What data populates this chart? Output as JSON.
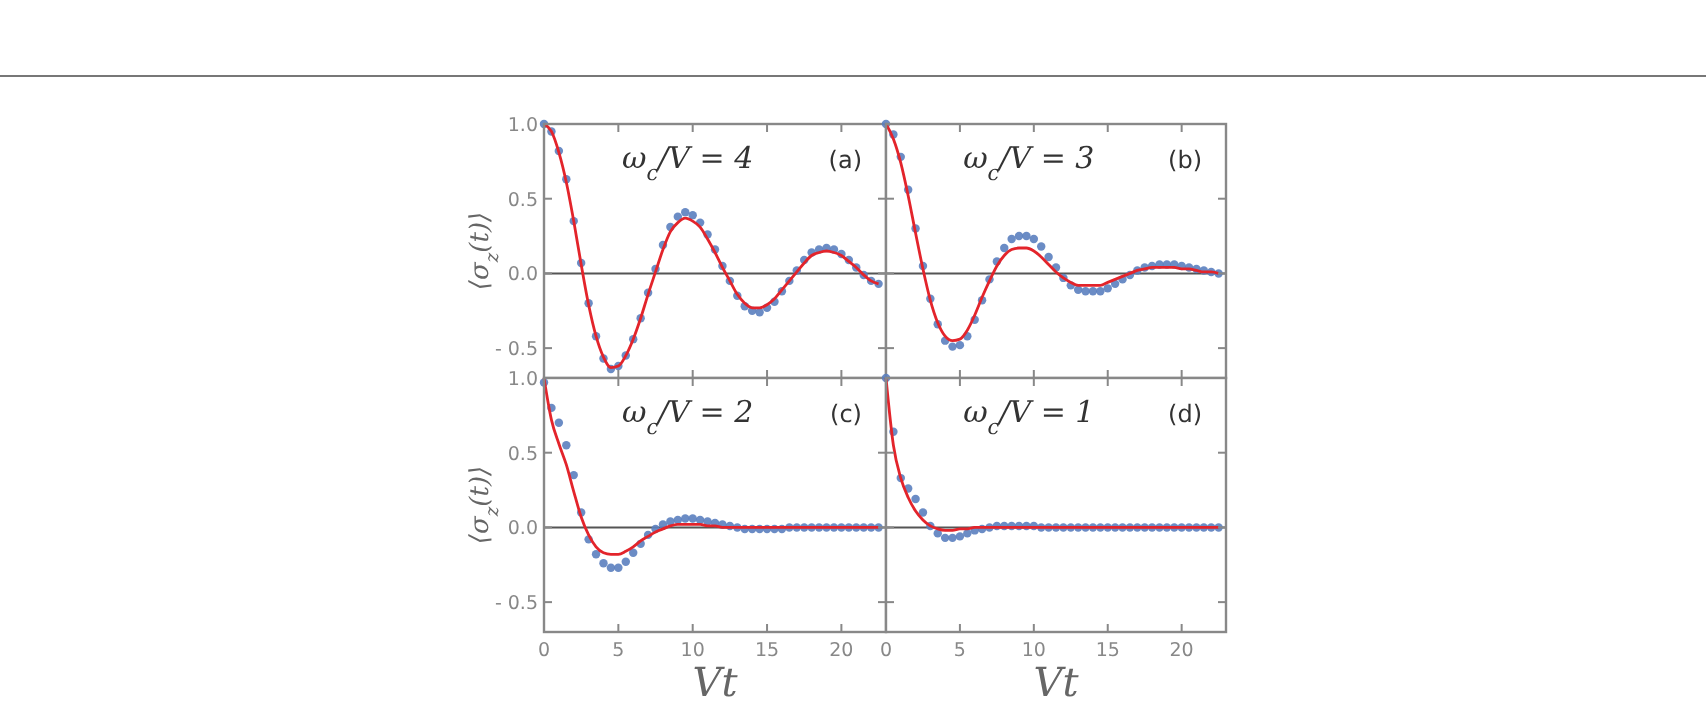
{
  "chart_data": [
    {
      "type": "line",
      "ylabel": "⟨σ$_{z}$(t)⟩",
      "annotations": [
        "ω$_{c}$/V = 4",
        "(a)"
      ],
      "xlim": [
        0,
        23
      ],
      "ylim": [
        -0.7,
        1.0
      ],
      "xticks": [
        0,
        5,
        10,
        15,
        20
      ],
      "yticks": [
        {
          "value": -0.5,
          "label": "- 0.5"
        },
        {
          "value": 0,
          "label": "0.0"
        },
        0.5,
        {
          "value": 1,
          "label": "1.0"
        }
      ],
      "tick_labels": "y",
      "grid": false,
      "ref_lines": [
        {
          "axis": "y",
          "value": 0,
          "color": "#555555"
        }
      ],
      "x": [
        0,
        0.5,
        1,
        1.5,
        2,
        2.5,
        3,
        3.5,
        4,
        4.5,
        5,
        5.5,
        6,
        6.5,
        7,
        7.5,
        8,
        8.5,
        9,
        9.5,
        10,
        10.5,
        11,
        11.5,
        12,
        12.5,
        13,
        13.5,
        14,
        14.5,
        15,
        15.5,
        16,
        16.5,
        17,
        17.5,
        18,
        18.5,
        19,
        19.5,
        20,
        20.5,
        21,
        21.5,
        22,
        22.5
      ],
      "series": [
        {
          "type": "line",
          "color": "#e3242b",
          "marker": "none",
          "line_style": "solid",
          "values": [
            1.0,
            0.95,
            0.81,
            0.61,
            0.35,
            0.06,
            -0.21,
            -0.42,
            -0.56,
            -0.63,
            -0.62,
            -0.55,
            -0.44,
            -0.3,
            -0.14,
            0.01,
            0.16,
            0.28,
            0.34,
            0.37,
            0.35,
            0.31,
            0.23,
            0.14,
            0.04,
            -0.05,
            -0.14,
            -0.2,
            -0.23,
            -0.23,
            -0.21,
            -0.17,
            -0.11,
            -0.05,
            0.01,
            0.07,
            0.12,
            0.14,
            0.15,
            0.14,
            0.12,
            0.08,
            0.04,
            -0.01,
            -0.05,
            -0.07
          ]
        },
        {
          "type": "scatter",
          "color": "#5b7fbf",
          "marker": "circle",
          "values": [
            1.0,
            0.95,
            0.82,
            0.63,
            0.35,
            0.07,
            -0.2,
            -0.42,
            -0.57,
            -0.64,
            -0.62,
            -0.55,
            -0.44,
            -0.3,
            -0.13,
            0.03,
            0.19,
            0.31,
            0.38,
            0.41,
            0.39,
            0.34,
            0.26,
            0.16,
            0.05,
            -0.05,
            -0.15,
            -0.22,
            -0.25,
            -0.26,
            -0.23,
            -0.19,
            -0.12,
            -0.05,
            0.02,
            0.09,
            0.14,
            0.16,
            0.17,
            0.16,
            0.13,
            0.09,
            0.04,
            -0.01,
            -0.05,
            -0.07
          ]
        }
      ]
    },
    {
      "type": "line",
      "annotations": [
        "ω$_{c}$/V = 3",
        "(b)"
      ],
      "xlim": [
        0,
        23
      ],
      "ylim": [
        -0.7,
        1.0
      ],
      "xticks": [
        0,
        5,
        10,
        15,
        20
      ],
      "yticks": [
        -0.5,
        0,
        0.5,
        1
      ],
      "tick_labels": false,
      "grid": false,
      "ref_lines": [
        {
          "axis": "y",
          "value": 0,
          "color": "#555555"
        }
      ],
      "x": [
        0,
        0.5,
        1,
        1.5,
        2,
        2.5,
        3,
        3.5,
        4,
        4.5,
        5,
        5.5,
        6,
        6.5,
        7,
        7.5,
        8,
        8.5,
        9,
        9.5,
        10,
        10.5,
        11,
        11.5,
        12,
        12.5,
        13,
        13.5,
        14,
        14.5,
        15,
        15.5,
        16,
        16.5,
        17,
        17.5,
        18,
        18.5,
        19,
        19.5,
        20,
        20.5,
        21,
        21.5,
        22,
        22.5
      ],
      "series": [
        {
          "type": "line",
          "color": "#e3242b",
          "marker": "none",
          "line_style": "solid",
          "values": [
            1.0,
            0.9,
            0.74,
            0.52,
            0.27,
            0.03,
            -0.18,
            -0.33,
            -0.42,
            -0.45,
            -0.44,
            -0.38,
            -0.28,
            -0.16,
            -0.05,
            0.05,
            0.12,
            0.16,
            0.17,
            0.17,
            0.15,
            0.11,
            0.06,
            0.01,
            -0.03,
            -0.06,
            -0.08,
            -0.08,
            -0.08,
            -0.08,
            -0.06,
            -0.04,
            -0.02,
            0,
            0.02,
            0.03,
            0.04,
            0.04,
            0.04,
            0.04,
            0.03,
            0.03,
            0.02,
            0.01,
            0.01,
            0
          ]
        },
        {
          "type": "scatter",
          "color": "#5b7fbf",
          "marker": "circle",
          "values": [
            1.0,
            0.93,
            0.78,
            0.56,
            0.3,
            0.05,
            -0.17,
            -0.34,
            -0.45,
            -0.49,
            -0.48,
            -0.42,
            -0.31,
            -0.18,
            -0.04,
            0.08,
            0.17,
            0.23,
            0.25,
            0.25,
            0.23,
            0.18,
            0.11,
            0.04,
            -0.03,
            -0.08,
            -0.11,
            -0.12,
            -0.12,
            -0.12,
            -0.1,
            -0.07,
            -0.04,
            -0.01,
            0.02,
            0.04,
            0.05,
            0.06,
            0.06,
            0.06,
            0.05,
            0.04,
            0.03,
            0.02,
            0.01,
            0
          ]
        }
      ]
    },
    {
      "type": "line",
      "xlabel": "Vt",
      "ylabel": "⟨σ$_{z}$(t)⟩",
      "annotations": [
        "ω$_{c}$/V = 2",
        "(c)"
      ],
      "xlim": [
        0,
        23
      ],
      "ylim": [
        -0.7,
        1.0
      ],
      "xticks": [
        0,
        5,
        10,
        15,
        20
      ],
      "yticks": [
        {
          "value": -0.5,
          "label": "- 0.5"
        },
        {
          "value": 0,
          "label": "0.0"
        },
        0.5,
        {
          "value": 1,
          "label": "1.0"
        }
      ],
      "grid": false,
      "ref_lines": [
        {
          "axis": "y",
          "value": 0,
          "color": "#555555"
        }
      ],
      "x": [
        0,
        0.5,
        1,
        1.5,
        2,
        2.5,
        3,
        3.5,
        4,
        4.5,
        5,
        5.5,
        6,
        6.5,
        7,
        7.5,
        8,
        8.5,
        9,
        9.5,
        10,
        10.5,
        11,
        11.5,
        12,
        12.5,
        13,
        13.5,
        14,
        14.5,
        15,
        15.5,
        16,
        16.5,
        17,
        17.5,
        18,
        18.5,
        19,
        19.5,
        20,
        20.5,
        21,
        21.5,
        22,
        22.5
      ],
      "series": [
        {
          "type": "line",
          "color": "#e3242b",
          "marker": "none",
          "line_style": "solid",
          "values": [
            1.0,
            0.72,
            0.56,
            0.42,
            0.24,
            0.07,
            -0.05,
            -0.13,
            -0.17,
            -0.18,
            -0.18,
            -0.16,
            -0.13,
            -0.09,
            -0.06,
            -0.03,
            -0.01,
            0.01,
            0.02,
            0.02,
            0.02,
            0.02,
            0.01,
            0.01,
            0,
            0,
            0,
            0,
            0,
            0,
            0,
            0,
            0,
            0,
            0,
            0,
            0,
            0,
            0,
            0,
            0,
            0,
            0,
            0,
            0,
            0
          ]
        },
        {
          "type": "scatter",
          "color": "#5b7fbf",
          "marker": "circle",
          "values": [
            0.97,
            0.8,
            0.7,
            0.55,
            0.35,
            0.1,
            -0.08,
            -0.18,
            -0.24,
            -0.27,
            -0.27,
            -0.23,
            -0.17,
            -0.11,
            -0.05,
            -0.01,
            0.02,
            0.04,
            0.05,
            0.06,
            0.06,
            0.05,
            0.04,
            0.03,
            0.02,
            0.01,
            0,
            -0.01,
            -0.01,
            -0.01,
            -0.01,
            -0.01,
            -0.01,
            0,
            0,
            0,
            0,
            0,
            0,
            0,
            0,
            0,
            0,
            0,
            0,
            0
          ]
        }
      ]
    },
    {
      "type": "line",
      "xlabel": "Vt",
      "annotations": [
        "ω$_{c}$/V = 1",
        "(d)"
      ],
      "xlim": [
        0,
        23
      ],
      "ylim": [
        -0.7,
        1.0
      ],
      "xticks": [
        0,
        5,
        10,
        15,
        20
      ],
      "yticks": [
        -0.5,
        0,
        0.5,
        1
      ],
      "tick_labels": "x",
      "grid": false,
      "ref_lines": [
        {
          "axis": "y",
          "value": 0,
          "color": "#555555"
        }
      ],
      "x": [
        0,
        0.5,
        1,
        1.5,
        2,
        2.5,
        3,
        3.5,
        4,
        4.5,
        5,
        5.5,
        6,
        6.5,
        7,
        7.5,
        8,
        8.5,
        9,
        9.5,
        10,
        10.5,
        11,
        11.5,
        12,
        12.5,
        13,
        13.5,
        14,
        14.5,
        15,
        15.5,
        16,
        16.5,
        17,
        17.5,
        18,
        18.5,
        19,
        19.5,
        20,
        20.5,
        21,
        21.5,
        22,
        22.5
      ],
      "series": [
        {
          "type": "line",
          "color": "#e3242b",
          "marker": "none",
          "line_style": "solid",
          "values": [
            1.0,
            0.55,
            0.33,
            0.2,
            0.11,
            0.05,
            0.01,
            -0.01,
            -0.02,
            -0.02,
            -0.01,
            -0.01,
            0,
            0,
            0,
            0,
            0,
            0,
            0,
            0,
            0,
            0,
            0,
            0,
            0,
            0,
            0,
            0,
            0,
            0,
            0,
            0,
            0,
            0,
            0,
            0,
            0,
            0,
            0,
            0,
            0,
            0,
            0,
            0,
            0,
            0
          ]
        },
        {
          "type": "scatter",
          "color": "#5b7fbf",
          "marker": "circle",
          "values": [
            1.0,
            0.64,
            0.33,
            0.26,
            0.19,
            0.1,
            0.01,
            -0.04,
            -0.07,
            -0.07,
            -0.06,
            -0.04,
            -0.02,
            -0.01,
            0,
            0.01,
            0.01,
            0.01,
            0.01,
            0.01,
            0.01,
            0,
            0,
            0,
            0,
            0,
            0,
            0,
            0,
            0,
            0,
            0,
            0,
            0,
            0,
            0,
            0,
            0,
            0,
            0,
            0,
            0,
            0,
            0,
            0,
            0
          ]
        }
      ]
    }
  ]
}
